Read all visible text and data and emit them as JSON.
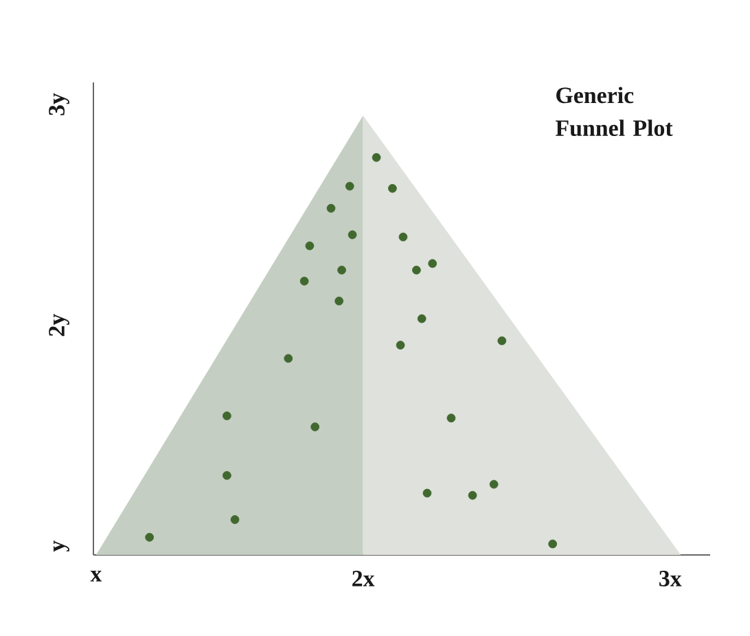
{
  "chart_data": {
    "type": "scatter",
    "title": "Generic Funnel Plot",
    "xlim": [
      0.99,
      3.3
    ],
    "ylim": [
      0.96,
      3.1
    ],
    "xticks": [
      {
        "value": 1,
        "label": "x"
      },
      {
        "value": 2,
        "label": "2x"
      },
      {
        "value": 3.15,
        "label": "3x"
      }
    ],
    "yticks": [
      {
        "value": 1,
        "label": "y"
      },
      {
        "value": 2,
        "label": "2y"
      },
      {
        "value": 3,
        "label": "3y"
      }
    ],
    "series": [
      {
        "type": "area",
        "color": "#c5cec3",
        "marker": "none",
        "x": [
          1.0,
          2.0
        ],
        "values": [
          0.96,
          2.95
        ]
      },
      {
        "type": "area",
        "color": "#dfe1dc",
        "marker": "none",
        "x": [
          2.0,
          3.19
        ],
        "values": [
          2.95,
          0.96
        ]
      },
      {
        "color": "#41692f",
        "marker": "circle",
        "x": [
          2.05,
          1.95,
          2.11,
          1.88,
          1.96,
          2.15,
          1.8,
          2.26,
          1.92,
          2.2,
          1.78,
          1.91,
          2.22,
          2.52,
          2.14,
          1.72,
          1.49,
          1.82,
          2.33,
          1.49,
          2.24,
          2.41,
          2.49,
          1.52,
          1.2,
          2.71
        ],
        "values": [
          2.76,
          2.63,
          2.62,
          2.53,
          2.41,
          2.4,
          2.36,
          2.28,
          2.25,
          2.25,
          2.2,
          2.11,
          2.03,
          1.93,
          1.91,
          1.85,
          1.59,
          1.54,
          1.58,
          1.32,
          1.24,
          1.23,
          1.28,
          1.12,
          1.04,
          1.01
        ]
      }
    ]
  }
}
